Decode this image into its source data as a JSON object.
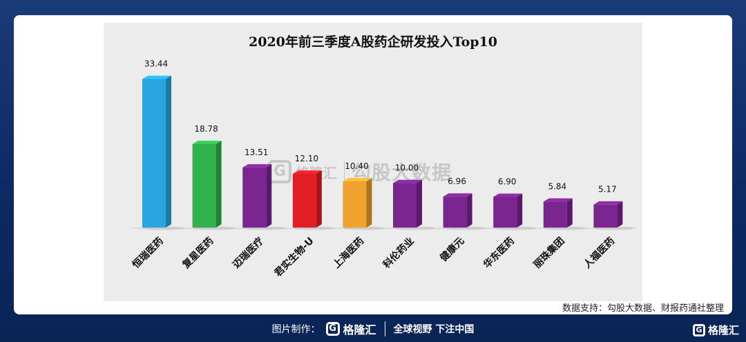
{
  "chart_data": {
    "type": "bar",
    "title": "2020年前三季度A股药企研发投入Top10",
    "categories": [
      "恒瑞医药",
      "复星医药",
      "迈瑞医疗",
      "君实生物-U",
      "上海医药",
      "科伦药业",
      "健康元",
      "华东医药",
      "丽珠集团",
      "人福医药"
    ],
    "values": [
      33.44,
      18.78,
      13.51,
      12.1,
      10.4,
      10.0,
      6.96,
      6.9,
      5.84,
      5.17
    ],
    "value_labels": [
      "33.44",
      "18.78",
      "13.51",
      "12.10",
      "10.40",
      "10.00",
      "6.96",
      "6.90",
      "5.84",
      "5.17"
    ],
    "colors": [
      "#29a6e0",
      "#2fb34a",
      "#7b2690",
      "#e21d24",
      "#f0a22e",
      "#7b2690",
      "#7b2690",
      "#7b2690",
      "#7b2690",
      "#7b2690"
    ],
    "ylim": [
      0,
      36
    ],
    "grid": false,
    "legend": "none"
  },
  "watermark": {
    "logo_glyph": "G",
    "brand": "格隆汇",
    "text": "勾股大数据"
  },
  "source": "数据支持：勾股大数据、财报药通社整理",
  "footer": {
    "label": "图片制作：",
    "logo_glyph": "G",
    "brand": "格隆汇",
    "slogan": "全球视野 下注中国"
  },
  "corner_logo": {
    "glyph": "G",
    "brand": "格隆汇"
  }
}
